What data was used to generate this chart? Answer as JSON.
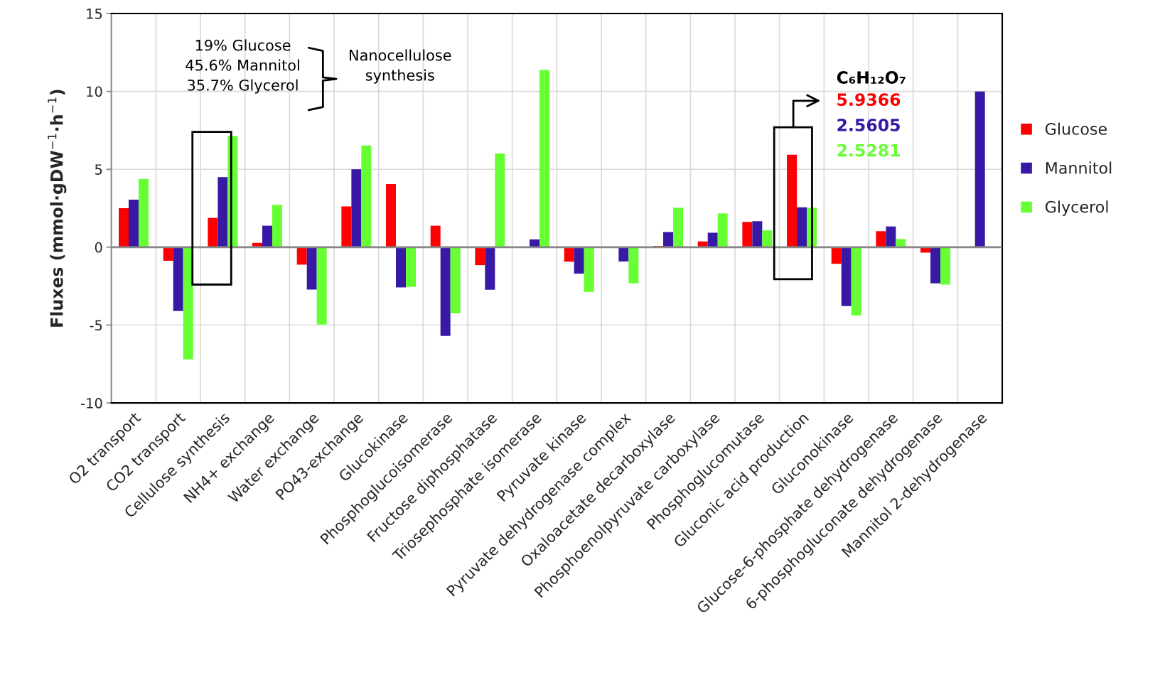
{
  "chart_data": {
    "type": "bar",
    "ylabel": "Fluxes (mmol·gDW$^{−1}$·h$^{−1}$)",
    "categories": [
      "O2 transport",
      "CO2 transport",
      "Cellulose synthesis",
      "NH4+ exchange",
      "Water exchange",
      "PO43-exchange",
      "Glucokinase",
      "Phosphoglucoisomerase",
      "Fructose diphosphatase",
      "Triosephosphate isomerase",
      "Pyruvate kinase",
      "Pyruvate dehydrogenase complex",
      "Oxaloacetate decarboxylase",
      "Phosphoenolpyruvate carboxylase",
      "Phosphoglucomutase",
      "Gluconic acid production",
      "Gluconokinase",
      "Glucose-6-phosphate dehydrogenase",
      "6-phosphogluconate dehydrogenase",
      "Mannitol 2-dehydrogenase"
    ],
    "series": [
      {
        "name": "Glucose",
        "color": "#ff0000",
        "values": [
          2.5,
          -0.87,
          1.88,
          0.28,
          -1.12,
          2.62,
          4.05,
          1.38,
          -1.15,
          0,
          -0.93,
          0,
          0.08,
          0.37,
          1.62,
          5.94,
          -1.07,
          1.03,
          -0.35,
          0
        ]
      },
      {
        "name": "Mannitol",
        "color": "#3719a6",
        "values": [
          3.05,
          -4.1,
          4.5,
          1.38,
          -2.72,
          5.0,
          -2.58,
          -5.7,
          -2.73,
          0.5,
          -1.7,
          -0.92,
          0.97,
          0.93,
          1.67,
          2.56,
          -3.78,
          1.33,
          -2.32,
          10.0
        ]
      },
      {
        "name": "Glycerol",
        "color": "#66ff33",
        "values": [
          4.38,
          -7.2,
          7.13,
          2.72,
          -4.97,
          6.53,
          -2.55,
          -4.25,
          6.02,
          11.37,
          -2.87,
          -2.32,
          2.53,
          2.17,
          1.08,
          2.53,
          -4.38,
          0.52,
          -2.4,
          0
        ]
      }
    ],
    "ylim": [
      -10,
      15
    ],
    "yticks": [
      -10,
      -5,
      0,
      5,
      10,
      15
    ],
    "grid": true,
    "legend": "right",
    "annotations": [
      "19% Glucose\n45.6% Mannitol\n35.7% Glycerol",
      "Nanocellulose\nsynthesis",
      "C₆H₁₂O₇",
      "5.9366",
      "2.5605",
      "2.5281"
    ]
  }
}
